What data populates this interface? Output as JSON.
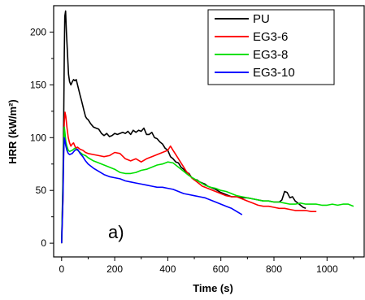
{
  "chart_data": {
    "type": "line",
    "xlabel": "Time (s)",
    "ylabel": "HRR (kW/m²)",
    "xlim": [
      -30,
      1140
    ],
    "ylim": [
      -13,
      225
    ],
    "xticks": [
      0,
      200,
      400,
      600,
      800,
      1000
    ],
    "yticks": [
      0,
      50,
      100,
      150,
      200
    ],
    "annotation": "a)",
    "legend_position": "top-right",
    "series": [
      {
        "name": "PU",
        "color": "#000000",
        "points": [
          [
            0,
            0
          ],
          [
            5,
            60
          ],
          [
            8,
            120
          ],
          [
            10,
            180
          ],
          [
            12,
            215
          ],
          [
            15,
            220
          ],
          [
            18,
            200
          ],
          [
            22,
            180
          ],
          [
            26,
            160
          ],
          [
            30,
            153
          ],
          [
            35,
            150
          ],
          [
            40,
            153
          ],
          [
            45,
            155
          ],
          [
            50,
            154
          ],
          [
            55,
            155
          ],
          [
            60,
            150
          ],
          [
            65,
            145
          ],
          [
            70,
            140
          ],
          [
            75,
            135
          ],
          [
            80,
            130
          ],
          [
            85,
            125
          ],
          [
            90,
            120
          ],
          [
            95,
            118
          ],
          [
            100,
            117
          ],
          [
            110,
            113
          ],
          [
            120,
            110
          ],
          [
            130,
            109
          ],
          [
            140,
            108
          ],
          [
            150,
            104
          ],
          [
            160,
            102
          ],
          [
            170,
            104
          ],
          [
            180,
            101
          ],
          [
            190,
            102
          ],
          [
            200,
            104
          ],
          [
            210,
            103
          ],
          [
            220,
            104
          ],
          [
            230,
            105
          ],
          [
            240,
            104
          ],
          [
            250,
            106
          ],
          [
            260,
            103
          ],
          [
            270,
            107
          ],
          [
            280,
            105
          ],
          [
            290,
            107
          ],
          [
            300,
            106
          ],
          [
            310,
            109
          ],
          [
            320,
            103
          ],
          [
            330,
            103
          ],
          [
            340,
            105
          ],
          [
            350,
            100
          ],
          [
            360,
            99
          ],
          [
            370,
            96
          ],
          [
            380,
            94
          ],
          [
            390,
            90
          ],
          [
            400,
            88
          ],
          [
            410,
            82
          ],
          [
            420,
            80
          ],
          [
            430,
            77
          ],
          [
            440,
            76
          ],
          [
            450,
            72
          ],
          [
            460,
            70
          ],
          [
            470,
            67
          ],
          [
            480,
            66
          ],
          [
            490,
            62
          ],
          [
            500,
            60
          ],
          [
            510,
            60
          ],
          [
            520,
            58
          ],
          [
            530,
            57
          ],
          [
            540,
            56
          ],
          [
            550,
            54
          ],
          [
            560,
            53
          ],
          [
            570,
            52
          ],
          [
            580,
            51
          ],
          [
            600,
            48
          ],
          [
            620,
            46
          ],
          [
            640,
            44
          ],
          [
            660,
            44
          ],
          [
            680,
            43
          ],
          [
            700,
            43
          ],
          [
            720,
            42
          ],
          [
            740,
            41
          ],
          [
            760,
            40
          ],
          [
            780,
            40
          ],
          [
            800,
            39
          ],
          [
            820,
            39
          ],
          [
            830,
            41
          ],
          [
            840,
            49
          ],
          [
            850,
            48
          ],
          [
            860,
            43
          ],
          [
            870,
            44
          ],
          [
            880,
            40
          ],
          [
            890,
            38
          ],
          [
            900,
            36
          ],
          [
            910,
            34
          ],
          [
            920,
            33
          ]
        ]
      },
      {
        "name": "EG3-6",
        "color": "#ff0000",
        "points": [
          [
            0,
            0
          ],
          [
            5,
            40
          ],
          [
            8,
            90
          ],
          [
            10,
            115
          ],
          [
            13,
            124
          ],
          [
            16,
            120
          ],
          [
            20,
            110
          ],
          [
            25,
            100
          ],
          [
            30,
            95
          ],
          [
            35,
            92
          ],
          [
            40,
            94
          ],
          [
            45,
            95
          ],
          [
            50,
            92
          ],
          [
            55,
            90
          ],
          [
            60,
            91
          ],
          [
            70,
            89
          ],
          [
            80,
            88
          ],
          [
            90,
            86
          ],
          [
            100,
            85
          ],
          [
            120,
            84
          ],
          [
            140,
            83
          ],
          [
            160,
            82
          ],
          [
            180,
            83
          ],
          [
            200,
            86
          ],
          [
            220,
            85
          ],
          [
            240,
            80
          ],
          [
            260,
            78
          ],
          [
            280,
            80
          ],
          [
            300,
            77
          ],
          [
            320,
            80
          ],
          [
            340,
            82
          ],
          [
            360,
            84
          ],
          [
            380,
            86
          ],
          [
            400,
            88
          ],
          [
            410,
            92
          ],
          [
            420,
            88
          ],
          [
            430,
            84
          ],
          [
            440,
            80
          ],
          [
            450,
            76
          ],
          [
            460,
            72
          ],
          [
            470,
            68
          ],
          [
            480,
            65
          ],
          [
            490,
            62
          ],
          [
            500,
            60
          ],
          [
            510,
            58
          ],
          [
            520,
            56
          ],
          [
            530,
            54
          ],
          [
            540,
            53
          ],
          [
            550,
            52
          ],
          [
            560,
            51
          ],
          [
            570,
            50
          ],
          [
            580,
            49
          ],
          [
            600,
            47
          ],
          [
            620,
            45
          ],
          [
            640,
            44
          ],
          [
            660,
            44
          ],
          [
            680,
            42
          ],
          [
            700,
            40
          ],
          [
            720,
            38
          ],
          [
            740,
            36
          ],
          [
            760,
            35
          ],
          [
            780,
            35
          ],
          [
            800,
            34
          ],
          [
            820,
            33
          ],
          [
            840,
            33
          ],
          [
            860,
            32
          ],
          [
            880,
            31
          ],
          [
            900,
            31
          ],
          [
            920,
            31
          ],
          [
            940,
            30
          ],
          [
            960,
            30
          ]
        ]
      },
      {
        "name": "EG3-8",
        "color": "#00e000",
        "points": [
          [
            0,
            0
          ],
          [
            5,
            50
          ],
          [
            8,
            95
          ],
          [
            10,
            110
          ],
          [
            13,
            104
          ],
          [
            16,
            96
          ],
          [
            20,
            92
          ],
          [
            25,
            88
          ],
          [
            30,
            87
          ],
          [
            40,
            88
          ],
          [
            50,
            90
          ],
          [
            60,
            88
          ],
          [
            70,
            86
          ],
          [
            80,
            84
          ],
          [
            90,
            83
          ],
          [
            100,
            81
          ],
          [
            120,
            78
          ],
          [
            140,
            76
          ],
          [
            160,
            74
          ],
          [
            180,
            72
          ],
          [
            200,
            70
          ],
          [
            220,
            67
          ],
          [
            240,
            66
          ],
          [
            260,
            66
          ],
          [
            280,
            67
          ],
          [
            300,
            69
          ],
          [
            320,
            70
          ],
          [
            340,
            72
          ],
          [
            360,
            74
          ],
          [
            380,
            75
          ],
          [
            400,
            77
          ],
          [
            420,
            76
          ],
          [
            440,
            72
          ],
          [
            460,
            68
          ],
          [
            480,
            64
          ],
          [
            500,
            61
          ],
          [
            520,
            58
          ],
          [
            540,
            55
          ],
          [
            560,
            53
          ],
          [
            580,
            52
          ],
          [
            600,
            50
          ],
          [
            620,
            49
          ],
          [
            640,
            47
          ],
          [
            660,
            45
          ],
          [
            680,
            44
          ],
          [
            700,
            43
          ],
          [
            720,
            42
          ],
          [
            740,
            41
          ],
          [
            760,
            40
          ],
          [
            780,
            40
          ],
          [
            800,
            39
          ],
          [
            820,
            39
          ],
          [
            840,
            38
          ],
          [
            860,
            37
          ],
          [
            880,
            37
          ],
          [
            900,
            38
          ],
          [
            920,
            37
          ],
          [
            940,
            37
          ],
          [
            960,
            37
          ],
          [
            980,
            36
          ],
          [
            1000,
            36
          ],
          [
            1020,
            37
          ],
          [
            1040,
            36
          ],
          [
            1060,
            37
          ],
          [
            1080,
            37
          ],
          [
            1100,
            35
          ]
        ]
      },
      {
        "name": "EG3-10",
        "color": "#0000ff",
        "points": [
          [
            0,
            0
          ],
          [
            5,
            40
          ],
          [
            8,
            85
          ],
          [
            10,
            100
          ],
          [
            13,
            97
          ],
          [
            16,
            92
          ],
          [
            20,
            88
          ],
          [
            25,
            85
          ],
          [
            30,
            84
          ],
          [
            40,
            85
          ],
          [
            50,
            88
          ],
          [
            60,
            89
          ],
          [
            70,
            85
          ],
          [
            80,
            82
          ],
          [
            90,
            78
          ],
          [
            100,
            75
          ],
          [
            120,
            71
          ],
          [
            140,
            68
          ],
          [
            160,
            65
          ],
          [
            180,
            63
          ],
          [
            200,
            62
          ],
          [
            220,
            61
          ],
          [
            240,
            59
          ],
          [
            260,
            58
          ],
          [
            280,
            57
          ],
          [
            300,
            56
          ],
          [
            320,
            55
          ],
          [
            340,
            54
          ],
          [
            360,
            53
          ],
          [
            380,
            53
          ],
          [
            400,
            52
          ],
          [
            420,
            51
          ],
          [
            440,
            49
          ],
          [
            460,
            47
          ],
          [
            480,
            46
          ],
          [
            500,
            45
          ],
          [
            520,
            44
          ],
          [
            540,
            43
          ],
          [
            560,
            41
          ],
          [
            580,
            39
          ],
          [
            600,
            37
          ],
          [
            620,
            35
          ],
          [
            640,
            33
          ],
          [
            660,
            30
          ],
          [
            680,
            27
          ]
        ]
      }
    ]
  }
}
